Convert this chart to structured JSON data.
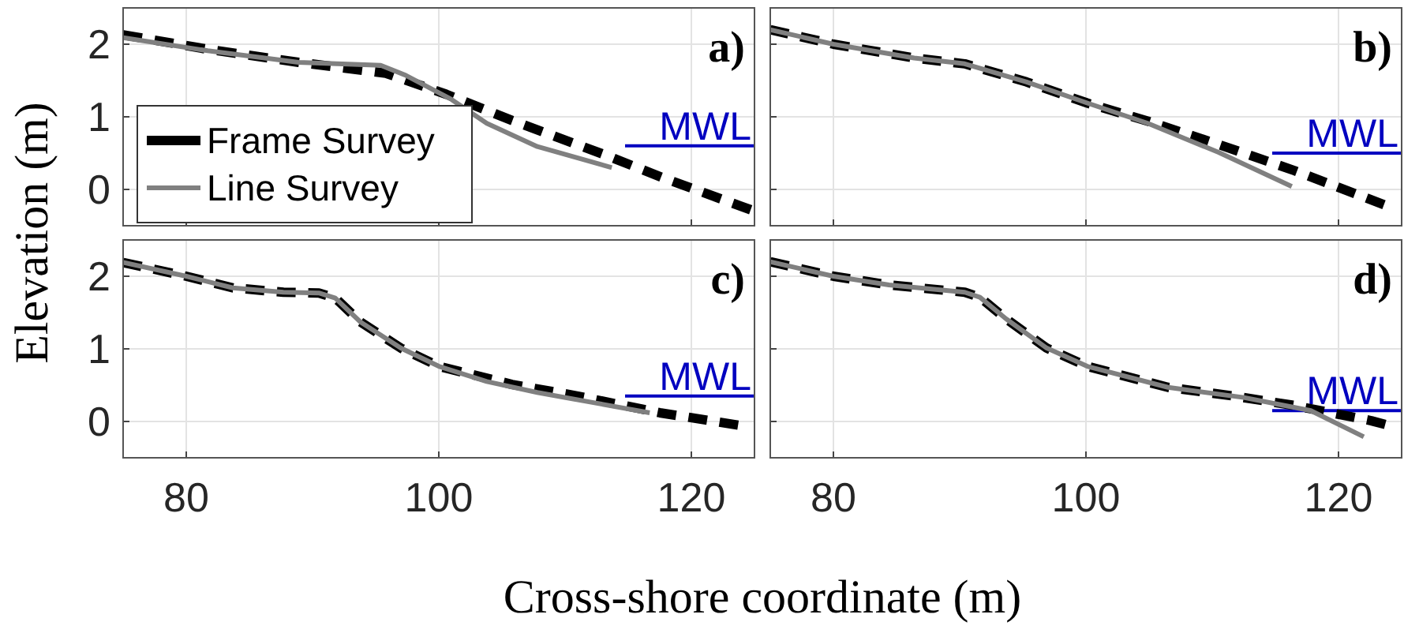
{
  "chart_data": [
    {
      "type": "line",
      "annotations": [
        "a)"
      ],
      "ylabel": "Elevation  (m)",
      "x": [
        75,
        81.7,
        88.9,
        95.8,
        100.6,
        105.8,
        113.1,
        117.9,
        124.7
      ],
      "xlim": [
        75,
        125
      ],
      "ylim": [
        -0.5,
        2.5
      ],
      "xticks": [
        80,
        100,
        120
      ],
      "yticks": [
        0,
        1,
        2
      ],
      "grid": true,
      "tick_labels": "y",
      "legend": "left",
      "series": [
        {
          "name": "Frame Survey",
          "color": "#000000",
          "line_style": "dashed",
          "values": [
            2.13,
            1.93,
            1.75,
            1.6,
            1.31,
            0.95,
            0.48,
            0.15,
            -0.28
          ]
        },
        {
          "name": "Line Survey",
          "color": "#808080",
          "line_style": "solid",
          "x": [
            75,
            81.7,
            88.9,
            95.4,
            97.4,
            101,
            103.8,
            107.8,
            113.7
          ],
          "values": [
            2.09,
            1.91,
            1.75,
            1.71,
            1.57,
            1.24,
            0.91,
            0.59,
            0.3
          ]
        }
      ],
      "ref_lines": [
        {
          "axis": "y",
          "value": 0.6,
          "label": "MWL",
          "color": "#0000c0"
        }
      ]
    },
    {
      "type": "line",
      "annotations": [
        "b)"
      ],
      "x": [
        75,
        80,
        86.4,
        90.4,
        95.3,
        100.1,
        104.9,
        110.5,
        116.5,
        123.6
      ],
      "xlim": [
        75,
        125
      ],
      "ylim": [
        -0.5,
        2.5
      ],
      "xticks": [
        80,
        100,
        120
      ],
      "yticks": [
        0,
        1,
        2
      ],
      "grid": true,
      "tick_labels": false,
      "legend": false,
      "series": [
        {
          "color": "#000000",
          "line_style": "dashed",
          "values": [
            2.2,
            2.0,
            1.81,
            1.73,
            1.48,
            1.19,
            0.94,
            0.62,
            0.26,
            -0.21
          ]
        },
        {
          "color": "#808080",
          "line_style": "solid",
          "x": [
            75,
            80,
            86.4,
            90.4,
            95.3,
            100.1,
            104.9,
            110.5,
            116.3
          ],
          "values": [
            2.2,
            2.0,
            1.81,
            1.73,
            1.48,
            1.19,
            0.91,
            0.51,
            0.04
          ]
        }
      ],
      "ref_lines": [
        {
          "axis": "y",
          "value": 0.5,
          "label": "MWL",
          "color": "#0000c0"
        }
      ]
    },
    {
      "type": "line",
      "annotations": [
        "c)"
      ],
      "xlabel": "Cross-shore coordinate  (m)",
      "x": [
        75,
        80,
        83.7,
        87.7,
        90.5,
        91.8,
        93.8,
        97,
        100,
        105.8,
        111,
        117.5,
        123.7
      ],
      "xlim": [
        75,
        125
      ],
      "ylim": [
        -0.5,
        2.5
      ],
      "xticks": [
        80,
        100,
        120
      ],
      "yticks": [
        0,
        1,
        2
      ],
      "grid": true,
      "legend": false,
      "series": [
        {
          "color": "#000000",
          "line_style": "dashed",
          "values": [
            2.19,
            2.0,
            1.84,
            1.78,
            1.77,
            1.7,
            1.37,
            1.01,
            0.76,
            0.51,
            0.35,
            0.12,
            -0.05
          ]
        },
        {
          "color": "#808080",
          "line_style": "solid",
          "x": [
            75,
            80,
            83.7,
            87.7,
            90.5,
            91.8,
            93.8,
            97,
            100,
            103.8,
            107.8,
            111.9,
            116.7
          ],
          "values": [
            2.19,
            2.0,
            1.84,
            1.78,
            1.77,
            1.7,
            1.37,
            1.01,
            0.76,
            0.55,
            0.4,
            0.27,
            0.12
          ]
        }
      ],
      "ref_lines": [
        {
          "axis": "y",
          "value": 0.35,
          "label": "MWL",
          "color": "#0000c0"
        }
      ]
    },
    {
      "type": "line",
      "annotations": [
        "d)"
      ],
      "x": [
        75,
        80,
        84.4,
        90.4,
        91.6,
        93.7,
        96.9,
        100.1,
        106.5,
        111.7,
        116.5,
        122.6,
        123.7
      ],
      "xlim": [
        75,
        125
      ],
      "ylim": [
        -0.5,
        2.5
      ],
      "xticks": [
        80,
        100,
        120
      ],
      "yticks": [
        0,
        1,
        2
      ],
      "grid": true,
      "tick_labels": "x",
      "legend": false,
      "series": [
        {
          "color": "#000000",
          "line_style": "dashed",
          "values": [
            2.2,
            2.0,
            1.88,
            1.78,
            1.71,
            1.41,
            1.01,
            0.76,
            0.47,
            0.35,
            0.22,
            0.01,
            -0.04
          ]
        },
        {
          "color": "#808080",
          "line_style": "solid",
          "x": [
            75,
            80,
            84.4,
            90.4,
            91.6,
            93.7,
            96.9,
            100.1,
            106.5,
            112.5,
            117.8,
            122
          ],
          "values": [
            2.2,
            2.0,
            1.88,
            1.78,
            1.71,
            1.41,
            1.01,
            0.76,
            0.47,
            0.33,
            0.15,
            -0.21
          ]
        }
      ],
      "ref_lines": [
        {
          "axis": "y",
          "value": 0.15,
          "label": "MWL",
          "color": "#0000c0"
        }
      ]
    }
  ]
}
